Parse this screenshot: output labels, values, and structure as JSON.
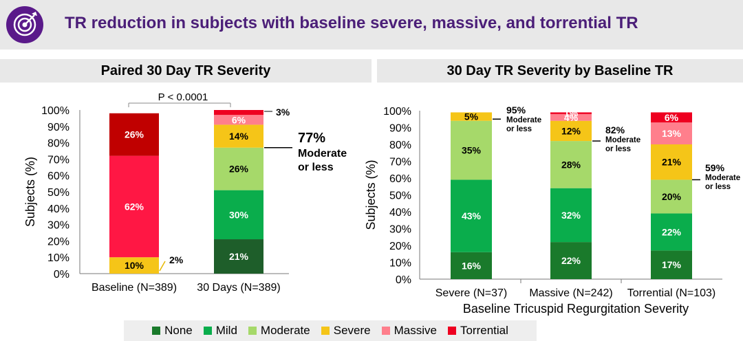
{
  "header": {
    "title": "TR reduction in subjects with baseline severe, massive, and torrential TR",
    "icon": "target-icon",
    "accent_color": "#4b1e78"
  },
  "colors": {
    "None": "#1a7a2b",
    "Mild": "#0aad4c",
    "Moderate": "#a6d96a",
    "Severe": "#f5c518",
    "Massive": "#ff7f8c",
    "Torrential": "#ee0020",
    "Baseline_Massive": "#ff1744",
    "Baseline_Torrential": "#c00000",
    "Days30_None": "#1e5e2a"
  },
  "legend": [
    {
      "label": "None",
      "color": "#1a7a2b"
    },
    {
      "label": "Mild",
      "color": "#0aad4c"
    },
    {
      "label": "Moderate",
      "color": "#a6d96a"
    },
    {
      "label": "Severe",
      "color": "#f5c518"
    },
    {
      "label": "Massive",
      "color": "#ff7f8c"
    },
    {
      "label": "Torrential",
      "color": "#ee0020"
    }
  ],
  "chart_data": [
    {
      "type": "bar",
      "stacked": true,
      "title": "Paired 30 Day TR Severity",
      "ylabel": "Subjects (%)",
      "ylim": [
        0,
        100
      ],
      "yticks": [
        "0%",
        "10%",
        "20%",
        "30%",
        "40%",
        "50%",
        "60%",
        "70%",
        "80%",
        "90%",
        "100%"
      ],
      "categories": [
        "Baseline (N=389)",
        "30 Days (N=389)"
      ],
      "series": [
        {
          "name": "None",
          "values": [
            0,
            21
          ],
          "labels": [
            "",
            "21%"
          ]
        },
        {
          "name": "Mild",
          "values": [
            0,
            30
          ],
          "labels": [
            "",
            "30%"
          ]
        },
        {
          "name": "Moderate",
          "values": [
            0,
            26
          ],
          "labels": [
            "",
            "26%"
          ]
        },
        {
          "name": "Severe",
          "values": [
            10,
            14
          ],
          "labels": [
            "10%",
            "14%"
          ]
        },
        {
          "name": "Massive",
          "values": [
            62,
            6
          ],
          "labels": [
            "62%",
            "6%"
          ]
        },
        {
          "name": "Torrential",
          "values": [
            26,
            3
          ],
          "labels": [
            "26%",
            ""
          ]
        }
      ],
      "annotations": {
        "p_value": "P < 0.0001",
        "baseline_extra": "2%",
        "days30_extra": "3%",
        "moderate_pct": "77%",
        "moderate_line1": "Moderate",
        "moderate_line2": "or less"
      }
    },
    {
      "type": "bar",
      "stacked": true,
      "title": "30 Day TR Severity by Baseline TR",
      "xlabel": "Baseline Tricuspid Regurgitation Severity",
      "ylabel": "Subjects (%)",
      "ylim": [
        0,
        100
      ],
      "yticks": [
        "0%",
        "10%",
        "20%",
        "30%",
        "40%",
        "50%",
        "60%",
        "70%",
        "80%",
        "90%",
        "100%"
      ],
      "categories": [
        "Severe (N=37)",
        "Massive (N=242)",
        "Torrential (N=103)"
      ],
      "series": [
        {
          "name": "None",
          "values": [
            16,
            22,
            17
          ],
          "labels": [
            "16%",
            "22%",
            "17%"
          ]
        },
        {
          "name": "Mild",
          "values": [
            43,
            32,
            22
          ],
          "labels": [
            "43%",
            "32%",
            "22%"
          ]
        },
        {
          "name": "Moderate",
          "values": [
            35,
            28,
            20
          ],
          "labels": [
            "35%",
            "28%",
            "20%"
          ]
        },
        {
          "name": "Severe",
          "values": [
            5,
            12,
            21
          ],
          "labels": [
            "5%",
            "12%",
            "21%"
          ]
        },
        {
          "name": "Massive",
          "values": [
            0,
            4,
            13
          ],
          "labels": [
            "",
            "4%",
            "13%"
          ]
        },
        {
          "name": "Torrential",
          "values": [
            0,
            1,
            6
          ],
          "labels": [
            "",
            "1%",
            "6%"
          ]
        }
      ],
      "annotations": [
        {
          "pct": "95%",
          "line1": "Moderate",
          "line2": "or less"
        },
        {
          "pct": "82%",
          "line1": "Moderate",
          "line2": "or less"
        },
        {
          "pct": "59%",
          "line1": "Moderate",
          "line2": "or less"
        }
      ]
    }
  ]
}
